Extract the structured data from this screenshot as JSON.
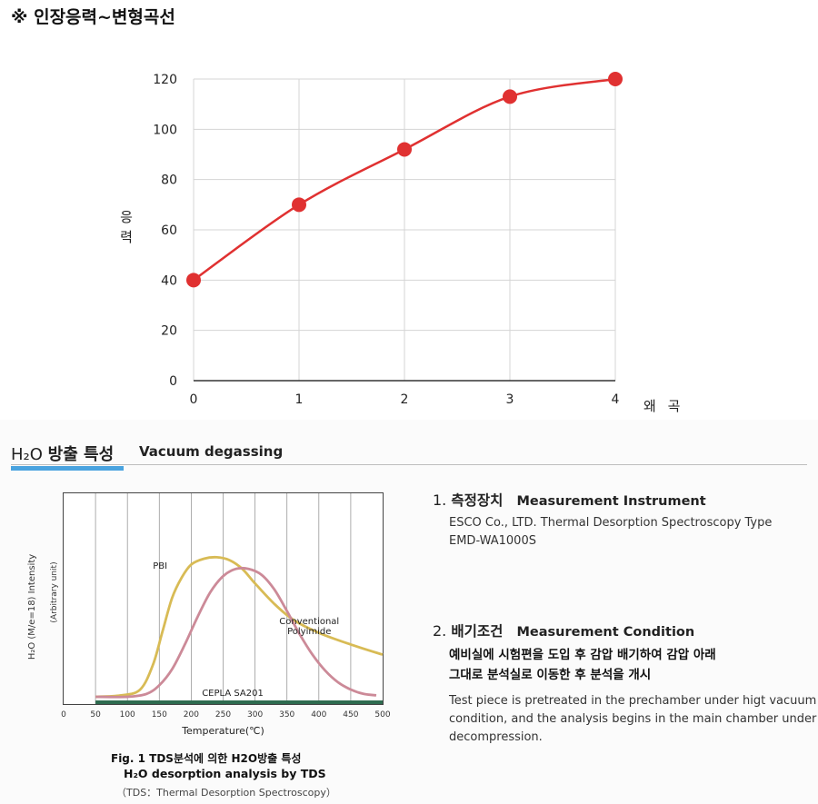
{
  "header": {
    "title": "※ 인장응력~변형곡선"
  },
  "chart_data": [
    {
      "type": "line",
      "title": "",
      "xlabel": "왜 곡",
      "ylabel": "응 력",
      "x": [
        0,
        1,
        2,
        3,
        4
      ],
      "series": [
        {
          "values": [
            40,
            70,
            92,
            113,
            120
          ],
          "color": "#e03131"
        }
      ],
      "xlim": [
        0,
        4
      ],
      "ylim": [
        0,
        120
      ],
      "x_ticks": [
        "0",
        "1",
        "2",
        "3",
        "4"
      ],
      "y_ticks": [
        "0",
        "20",
        "40",
        "60",
        "80",
        "100",
        "120"
      ],
      "grid": true
    },
    {
      "type": "line",
      "xlabel": "Temperature(℃)",
      "ylabel": "H₂O (M/e=18) Intensity",
      "ylabel2": "(Arbitrary unit)",
      "xlim": [
        0,
        500
      ],
      "x_ticks": [
        "0",
        "50",
        "100",
        "150",
        "200",
        "250",
        "300",
        "350",
        "400",
        "450",
        "500"
      ],
      "grid": true,
      "series": [
        {
          "name": "PBI",
          "color": "#d8bb55",
          "x": [
            50,
            90,
            120,
            140,
            155,
            170,
            185,
            200,
            220,
            240,
            260,
            280,
            300,
            330,
            360,
            400,
            450,
            500
          ],
          "values": [
            0,
            1,
            5,
            22,
            45,
            68,
            82,
            91,
            95,
            96,
            94,
            88,
            78,
            64,
            53,
            44,
            36,
            29
          ]
        },
        {
          "name": "Conventional Polyimide",
          "color": "#cc8a98",
          "x": [
            50,
            100,
            130,
            150,
            170,
            190,
            210,
            230,
            250,
            270,
            290,
            310,
            330,
            350,
            370,
            390,
            410,
            430,
            450,
            470,
            490
          ],
          "values": [
            0,
            0,
            2,
            8,
            19,
            36,
            55,
            72,
            83,
            88,
            88,
            84,
            74,
            59,
            43,
            29,
            18,
            10,
            5,
            2,
            1
          ]
        },
        {
          "name": "CEPLA SA201",
          "color": "#2e6b4f",
          "x": [
            50,
            500
          ],
          "values": [
            0,
            0
          ]
        }
      ]
    }
  ],
  "section": {
    "title_h2o": "H₂O",
    "title_kr": "방출 특성",
    "subtitle": "Vacuum degassing",
    "measure1": {
      "num": "1.",
      "kr": "측정장치",
      "en": "Measurement Instrument",
      "line1": "ESCO Co., LTD. Thermal Desorption Spectroscopy Type",
      "line2": "EMD-WA1000S"
    },
    "measure2": {
      "num": "2.",
      "kr": "배기조건",
      "en": "Measurement Condition",
      "kr_line1": "예비실에 시험편을 도입 후 감압 배기하여 감압 아래",
      "kr_line2": "그대로 분석실로 이동한 후 분석을 개시",
      "en_line1": "Test piece is pretreated in the prechamber under higt vacuum",
      "en_line2": "condition, and the analysis begins in the main chamber under",
      "en_line3": "decompression."
    }
  },
  "caption": {
    "line1": "Fig. 1  TDS분석에 의한 H2O방출 특성",
    "line2": "H₂O desorption analysis by TDS",
    "line3": "（TDS：Thermal Desorption Spectroscopy）"
  }
}
